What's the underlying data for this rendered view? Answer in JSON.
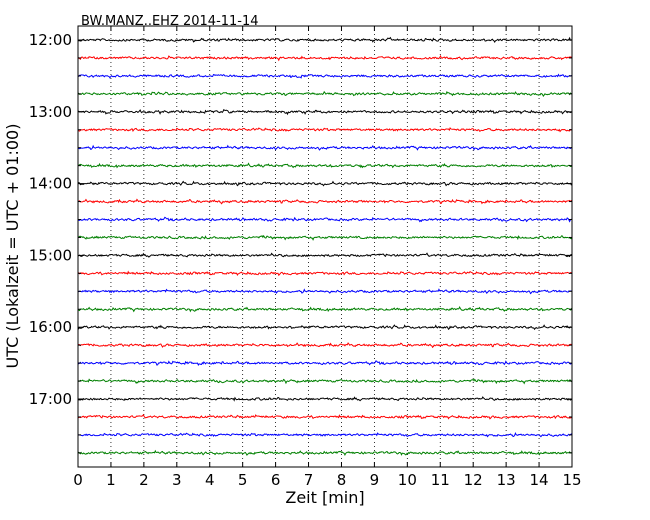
{
  "chart_data": {
    "type": "line",
    "title": "BW.MANZ..EHZ 2014-11-14",
    "xlabel": "Zeit  [min]",
    "ylabel": "UTC (Lokalzeit = UTC + 01:00)",
    "xlim": [
      0,
      15
    ],
    "x_ticks": [
      "0",
      "1",
      "2",
      "3",
      "4",
      "5",
      "6",
      "7",
      "8",
      "9",
      "10",
      "11",
      "12",
      "13",
      "14",
      "15"
    ],
    "y_ticks": [
      "12:00",
      "13:00",
      "14:00",
      "15:00",
      "16:00",
      "17:00"
    ],
    "trace_start": "12:00",
    "trace_end": "17:45",
    "trace_interval_min": 15,
    "trace_colors": [
      "#000000",
      "#ff0000",
      "#0000ff",
      "#008000"
    ],
    "grid": {
      "x": "dotted-vertical",
      "y": "off"
    },
    "series_type": "seismogram helicorder traces (noise)"
  }
}
